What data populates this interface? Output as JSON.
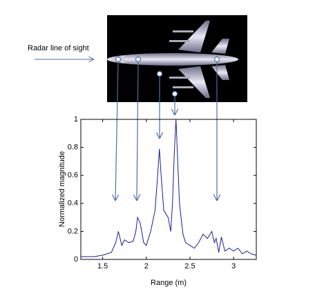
{
  "chart_data": {
    "type": "line",
    "annotation": "Radar line of sight",
    "x_label": "Range (m)",
    "y_label": "Normalized magnitude",
    "x": [
      1.25,
      1.4,
      1.5,
      1.6,
      1.65,
      1.68,
      1.72,
      1.75,
      1.8,
      1.85,
      1.88,
      1.9,
      1.93,
      1.97,
      2.0,
      2.05,
      2.1,
      2.13,
      2.15,
      2.17,
      2.2,
      2.25,
      2.28,
      2.3,
      2.32,
      2.34,
      2.36,
      2.38,
      2.42,
      2.45,
      2.5,
      2.55,
      2.6,
      2.65,
      2.7,
      2.75,
      2.78,
      2.8,
      2.83,
      2.86,
      2.9,
      2.95,
      3.0,
      3.05,
      3.1,
      3.15,
      3.2,
      3.26
    ],
    "series": [
      {
        "color": "#1a1a9a",
        "values": [
          0.02,
          0.02,
          0.03,
          0.05,
          0.12,
          0.2,
          0.1,
          0.14,
          0.12,
          0.13,
          0.2,
          0.3,
          0.26,
          0.12,
          0.1,
          0.2,
          0.35,
          0.6,
          0.79,
          0.6,
          0.35,
          0.3,
          0.2,
          0.4,
          0.75,
          1.0,
          0.7,
          0.4,
          0.18,
          0.12,
          0.1,
          0.08,
          0.12,
          0.18,
          0.15,
          0.2,
          0.12,
          0.15,
          0.05,
          0.16,
          0.06,
          0.08,
          0.06,
          0.08,
          0.04,
          0.06,
          0.04,
          0.03
        ]
      }
    ],
    "xlim": [
      1.25,
      3.26
    ],
    "ylim": [
      0,
      1
    ],
    "xticks": [
      1.5,
      2,
      2.5,
      3
    ],
    "yticks": [
      0,
      0.2,
      0.4,
      0.6,
      0.8,
      1
    ]
  }
}
